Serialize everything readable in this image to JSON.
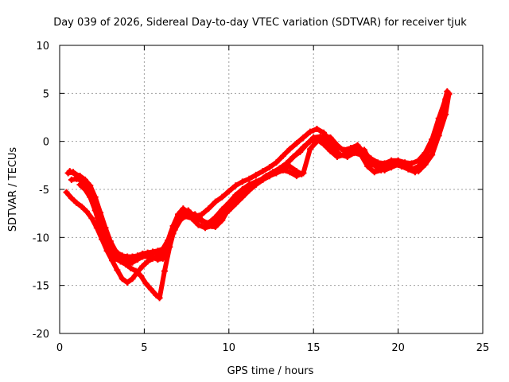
{
  "chart_data": {
    "type": "scatter",
    "title": "Day 039 of 2026, Sidereal Day-to-day VTEC variation (SDTVAR) for receiver tjuk",
    "xlabel": "GPS time / hours",
    "ylabel": "SDTVAR / TECUs",
    "xlim": [
      0,
      25
    ],
    "ylim": [
      -20,
      10
    ],
    "xticks": [
      0,
      5,
      10,
      15,
      20,
      25
    ],
    "yticks": [
      -20,
      -15,
      -10,
      -5,
      0,
      5,
      10
    ],
    "xtick_labels": [
      "0",
      "5",
      "10",
      "15",
      "20",
      "25"
    ],
    "ytick_labels": [
      "-20",
      "-15",
      "-10",
      "-5",
      "0",
      "5",
      "10"
    ],
    "grid": true,
    "marker": "+",
    "colors": {
      "series": "#ff0000",
      "grid": "#a0a0a0",
      "axis": "#000000"
    },
    "series": [
      {
        "x": [
          0.5,
          0.8,
          1.0,
          1.3,
          1.6,
          1.9,
          2.2,
          2.5,
          2.8,
          3.1,
          3.4,
          3.7,
          4.0,
          4.3,
          4.6,
          4.9,
          5.2,
          5.5,
          5.8,
          6.1,
          6.4,
          6.7,
          7.0,
          7.3,
          7.6,
          8.0,
          8.4,
          8.8,
          9.2,
          9.6,
          10.0,
          10.4,
          10.8,
          11.2,
          11.6,
          12.0,
          12.4,
          12.8,
          13.2,
          13.6,
          14.0,
          14.4,
          14.8,
          15.2,
          15.6,
          16.0,
          16.4,
          16.8,
          17.2,
          17.6,
          18.0,
          18.4,
          18.8,
          19.2,
          19.6,
          20.0,
          20.4,
          20.8,
          21.2,
          21.6,
          22.0,
          22.4,
          22.8,
          23.0
        ],
        "y": [
          -3.3,
          -3.2,
          -3.5,
          -3.8,
          -4.4,
          -5.5,
          -7.0,
          -8.6,
          -10.0,
          -11.0,
          -11.6,
          -11.9,
          -12.0,
          -12.0,
          -11.9,
          -11.7,
          -11.6,
          -11.5,
          -11.4,
          -11.2,
          -10.3,
          -8.8,
          -7.6,
          -7.0,
          -7.4,
          -7.8,
          -7.6,
          -7.0,
          -6.3,
          -5.8,
          -5.2,
          -4.6,
          -4.2,
          -3.9,
          -3.5,
          -3.1,
          -2.7,
          -2.2,
          -1.5,
          -0.8,
          -0.2,
          0.4,
          1.0,
          1.3,
          0.9,
          0.0,
          -0.6,
          -0.9,
          -0.7,
          -0.4,
          -1.2,
          -1.8,
          -2.2,
          -2.3,
          -2.0,
          -2.0,
          -2.2,
          -2.3,
          -2.0,
          -1.2,
          0.2,
          2.0,
          3.8,
          5.0
        ]
      },
      {
        "x": [
          0.6,
          0.9,
          1.2,
          1.5,
          1.8,
          2.1,
          2.4,
          2.7,
          3.0,
          3.3,
          3.6,
          3.9,
          4.2,
          4.5,
          4.8,
          5.1,
          5.4,
          5.7,
          6.0,
          6.3,
          6.6,
          6.9,
          7.2,
          7.6,
          8.0,
          8.4,
          8.8,
          9.2,
          9.6,
          10.0,
          10.4,
          10.8,
          11.2,
          11.6,
          12.0,
          12.4,
          12.8,
          13.2,
          13.6,
          14.0,
          14.4,
          14.8,
          15.2,
          15.6,
          16.0,
          16.4,
          16.8,
          17.2,
          17.6,
          18.0,
          18.4,
          18.8,
          19.2,
          19.6,
          20.0,
          20.4,
          20.8,
          21.2,
          21.6,
          22.0,
          22.4,
          22.8,
          23.0
        ],
        "y": [
          -3.1,
          -3.4,
          -3.6,
          -4.0,
          -4.6,
          -5.8,
          -7.4,
          -9.0,
          -10.4,
          -11.4,
          -12.0,
          -12.3,
          -12.3,
          -12.2,
          -12.0,
          -11.8,
          -11.7,
          -11.6,
          -11.4,
          -10.8,
          -9.5,
          -8.3,
          -7.3,
          -7.2,
          -7.9,
          -8.3,
          -8.5,
          -7.9,
          -7.1,
          -6.4,
          -5.6,
          -5.0,
          -4.5,
          -4.2,
          -3.9,
          -3.6,
          -3.3,
          -3.0,
          -3.2,
          -3.6,
          -3.3,
          -0.8,
          0.0,
          0.6,
          0.4,
          -0.4,
          -1.0,
          -1.3,
          -1.0,
          -0.9,
          -2.2,
          -2.8,
          -3.0,
          -2.7,
          -2.4,
          -2.5,
          -2.8,
          -3.1,
          -2.4,
          -1.4,
          0.6,
          2.8,
          4.9
        ]
      },
      {
        "x": [
          0.7,
          1.0,
          1.3,
          1.6,
          1.9,
          2.2,
          2.5,
          2.8,
          3.1,
          3.4,
          3.7,
          4.0,
          4.3,
          4.6,
          4.9,
          5.2,
          5.5,
          5.8,
          6.1,
          6.4,
          6.7,
          7.0,
          7.4,
          7.8,
          8.2,
          8.6,
          9.0,
          9.4,
          9.8,
          10.2,
          10.6,
          11.0,
          11.4,
          11.8,
          12.2,
          12.6,
          13.0,
          13.4,
          13.8,
          14.2,
          14.6,
          15.0,
          15.4,
          15.8,
          16.2,
          16.6,
          17.0,
          17.4,
          17.8,
          18.2,
          18.6,
          19.0,
          19.4,
          19.8,
          20.2,
          20.6,
          21.0,
          21.4,
          21.8,
          22.2,
          22.6,
          22.9
        ],
        "y": [
          -4.0,
          -3.9,
          -4.1,
          -4.5,
          -5.2,
          -6.6,
          -8.4,
          -10.0,
          -11.2,
          -12.0,
          -12.4,
          -12.7,
          -12.6,
          -12.3,
          -12.0,
          -12.0,
          -12.1,
          -12.3,
          -12.2,
          -11.0,
          -9.6,
          -8.4,
          -7.8,
          -8.0,
          -8.7,
          -9.0,
          -8.8,
          -8.0,
          -7.2,
          -6.6,
          -5.8,
          -5.0,
          -4.5,
          -4.1,
          -3.6,
          -3.2,
          -2.8,
          -2.3,
          -1.6,
          -1.1,
          -0.3,
          0.4,
          0.5,
          -0.2,
          -0.8,
          -1.4,
          -1.6,
          -1.2,
          -1.4,
          -2.6,
          -3.2,
          -3.0,
          -2.6,
          -2.4,
          -2.6,
          -2.9,
          -3.2,
          -2.4,
          -1.0,
          0.8,
          3.2,
          5.2
        ]
      },
      {
        "x": [
          0.4,
          0.7,
          1.0,
          1.3,
          1.6,
          1.9,
          2.2,
          2.5,
          2.8,
          3.1,
          3.4,
          3.7,
          4.0,
          4.3,
          4.6,
          4.9,
          5.2,
          5.5,
          5.8,
          6.1,
          6.4,
          6.8,
          7.2,
          7.6,
          8.0,
          8.4,
          8.8,
          9.2,
          9.6,
          10.0,
          10.4,
          10.8,
          11.2,
          11.6,
          12.0,
          12.4,
          12.8,
          13.2,
          13.6,
          14.0,
          14.4,
          14.8,
          15.2,
          15.6,
          16.0,
          16.4,
          16.8,
          17.2,
          17.6,
          18.0,
          18.4,
          18.8,
          19.2,
          19.6,
          20.0,
          20.4,
          20.8,
          21.2,
          21.6,
          22.0,
          22.4,
          22.8
        ],
        "y": [
          -5.3,
          -5.9,
          -6.4,
          -6.8,
          -7.3,
          -8.0,
          -9.0,
          -10.2,
          -11.4,
          -12.4,
          -13.4,
          -14.3,
          -14.7,
          -14.3,
          -13.6,
          -13.0,
          -12.5,
          -12.2,
          -12.0,
          -11.8,
          -10.6,
          -9.2,
          -8.0,
          -7.5,
          -7.6,
          -8.2,
          -8.8,
          -8.9,
          -8.2,
          -7.0,
          -6.0,
          -5.3,
          -4.8,
          -4.4,
          -4.0,
          -3.6,
          -3.1,
          -2.6,
          -2.0,
          -1.3,
          -0.6,
          0.0,
          0.2,
          -0.3,
          -1.0,
          -1.6,
          -1.4,
          -0.8,
          -0.6,
          -1.6,
          -2.4,
          -2.6,
          -2.4,
          -2.2,
          -2.3,
          -2.6,
          -2.9,
          -2.6,
          -1.6,
          0.2,
          2.4,
          4.4
        ]
      },
      {
        "x": [
          1.2,
          1.5,
          1.8,
          2.1,
          2.4,
          2.7,
          3.0,
          3.3,
          3.6,
          3.9,
          4.2,
          4.5,
          4.8,
          5.1,
          5.4,
          5.7,
          5.9,
          6.2,
          6.5,
          6.8,
          7.2,
          7.6,
          8.0,
          8.4,
          8.8,
          9.2,
          9.6,
          10.0,
          10.4,
          10.8,
          11.2,
          11.6,
          12.0,
          12.4,
          12.8,
          13.2,
          13.6,
          14.0,
          14.3
        ],
        "y": [
          -4.5,
          -5.0,
          -5.8,
          -7.2,
          -9.0,
          -10.6,
          -11.7,
          -12.2,
          -12.5,
          -12.8,
          -13.2,
          -13.5,
          -14.0,
          -14.8,
          -15.4,
          -16.0,
          -16.3,
          -13.5,
          -11.0,
          -9.0,
          -7.8,
          -7.4,
          -7.7,
          -8.2,
          -8.6,
          -8.4,
          -7.8,
          -7.2,
          -6.5,
          -5.8,
          -5.1,
          -4.5,
          -4.0,
          -3.6,
          -3.2,
          -2.8,
          -2.6,
          -3.1,
          -3.4
        ]
      }
    ]
  }
}
